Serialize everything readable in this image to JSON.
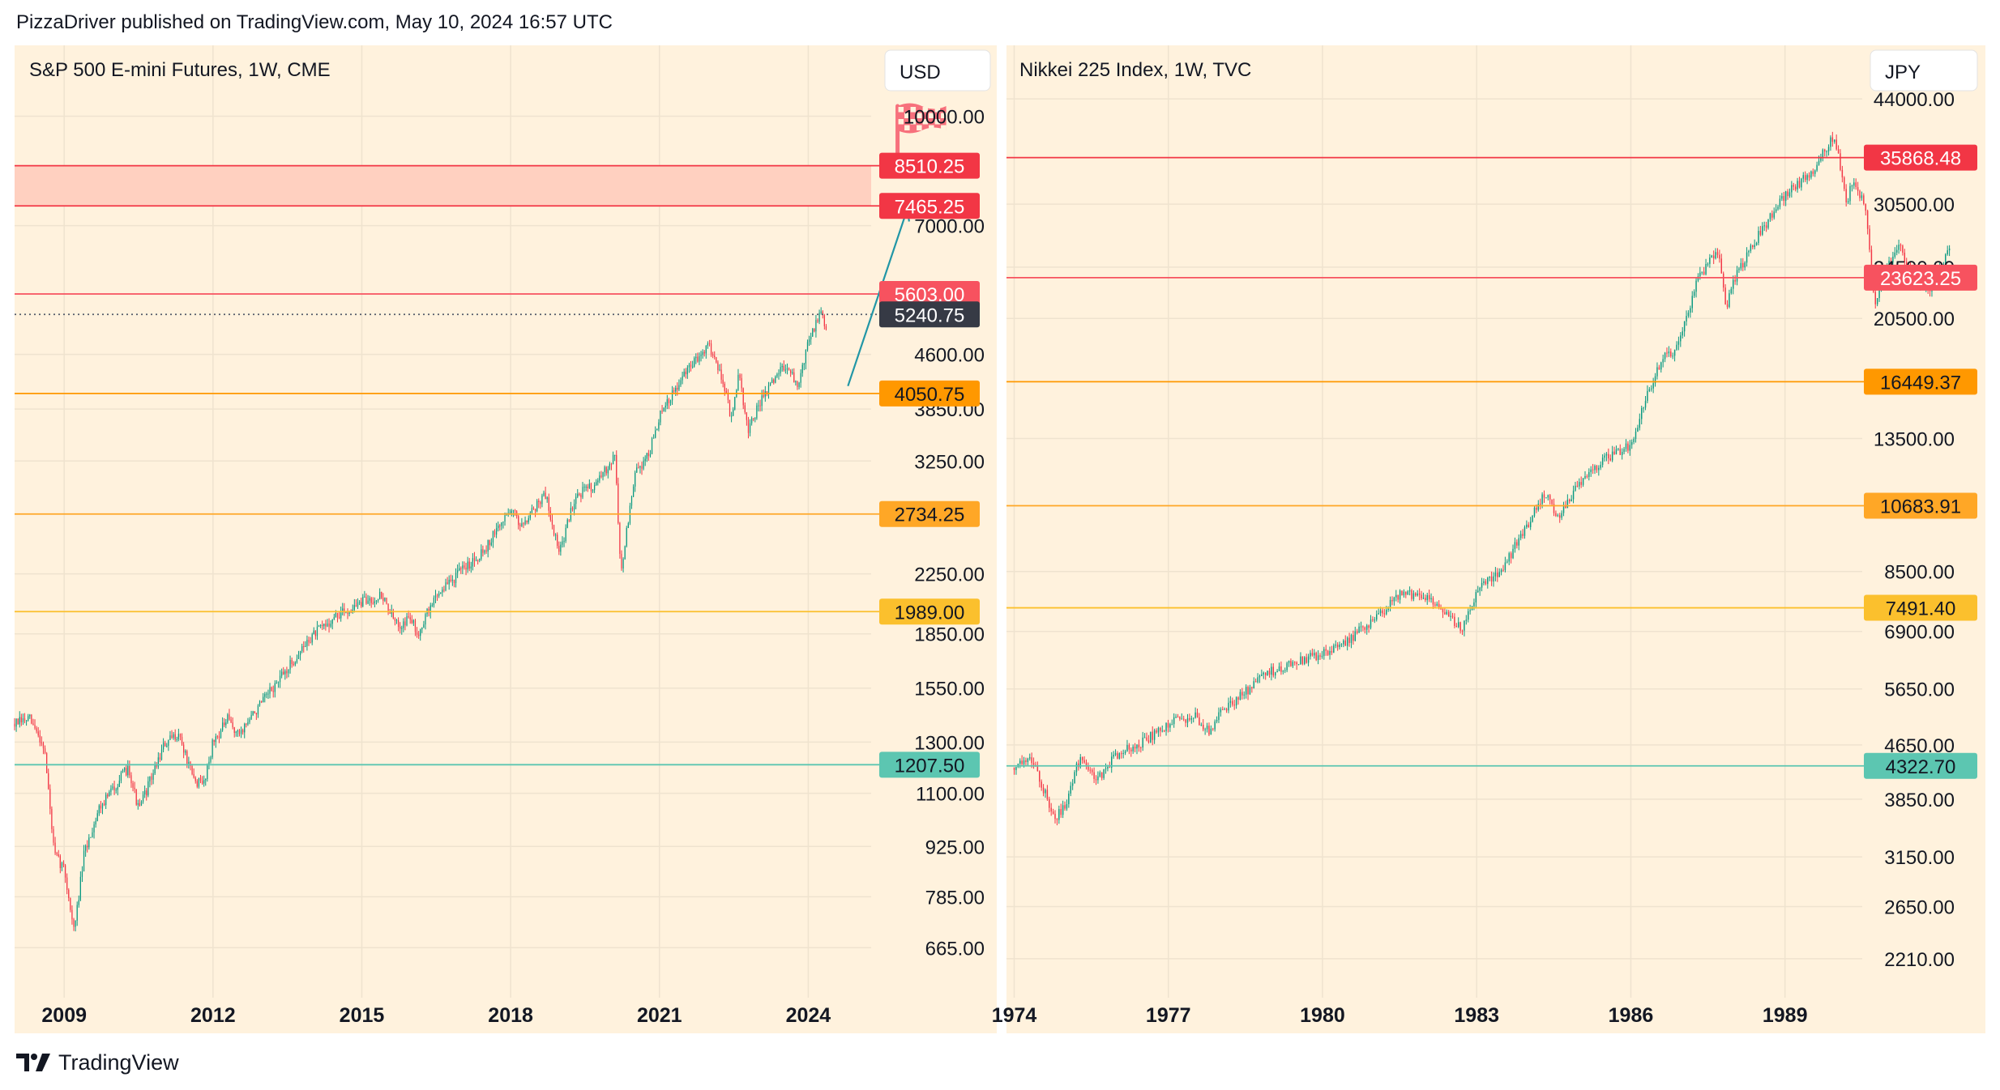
{
  "header": {
    "text": "PizzaDriver published on TradingView.com, May 10, 2024 16:57 UTC"
  },
  "footer": {
    "brand": "TradingView"
  },
  "colors": {
    "panel_bg": "#fff2dd",
    "grid": "#efe3cf",
    "candle_up": "#089981",
    "candle_down": "#f23645",
    "red_line": "#f23645",
    "orange_line": "#ff9800",
    "gold_line": "#f7b500",
    "teal_line": "#5cc6b1",
    "zone_fill": "#ffd0c0",
    "arrow": "#2196a6",
    "flag": "#f7707c"
  },
  "chart_data": [
    {
      "type": "candlestick",
      "title": "S&P 500 E-mini Futures, 1W, CME",
      "currency": "USD",
      "scale": "log",
      "yticks": [
        "10000.00",
        "7000.00",
        "4600.00",
        "3850.00",
        "3250.00",
        "2250.00",
        "1850.00",
        "1550.00",
        "1300.00",
        "1100.00",
        "925.00",
        "785.00",
        "665.00"
      ],
      "xticks": [
        "2009",
        "2012",
        "2015",
        "2018",
        "2021",
        "2024"
      ],
      "xrange": [
        2008.0,
        2027.8
      ],
      "yrange": [
        565,
        12600
      ],
      "price_path": [
        [
          2008.0,
          1380
        ],
        [
          2008.3,
          1400
        ],
        [
          2008.6,
          1280
        ],
        [
          2008.8,
          900
        ],
        [
          2009.0,
          860
        ],
        [
          2009.2,
          700
        ],
        [
          2009.4,
          900
        ],
        [
          2009.7,
          1050
        ],
        [
          2010.0,
          1120
        ],
        [
          2010.3,
          1200
        ],
        [
          2010.5,
          1040
        ],
        [
          2010.8,
          1180
        ],
        [
          2011.0,
          1280
        ],
        [
          2011.3,
          1340
        ],
        [
          2011.6,
          1150
        ],
        [
          2011.8,
          1130
        ],
        [
          2012.0,
          1300
        ],
        [
          2012.3,
          1400
        ],
        [
          2012.5,
          1330
        ],
        [
          2012.8,
          1420
        ],
        [
          2013.0,
          1480
        ],
        [
          2013.5,
          1650
        ],
        [
          2014.0,
          1840
        ],
        [
          2014.5,
          1960
        ],
        [
          2015.0,
          2050
        ],
        [
          2015.4,
          2100
        ],
        [
          2015.7,
          1900
        ],
        [
          2016.0,
          1950
        ],
        [
          2016.1,
          1840
        ],
        [
          2016.5,
          2100
        ],
        [
          2017.0,
          2270
        ],
        [
          2017.5,
          2450
        ],
        [
          2018.0,
          2790
        ],
        [
          2018.2,
          2640
        ],
        [
          2018.7,
          2920
        ],
        [
          2018.98,
          2400
        ],
        [
          2019.3,
          2900
        ],
        [
          2019.8,
          3050
        ],
        [
          2020.1,
          3340
        ],
        [
          2020.22,
          2250
        ],
        [
          2020.5,
          3100
        ],
        [
          2020.8,
          3350
        ],
        [
          2021.0,
          3750
        ],
        [
          2021.5,
          4300
        ],
        [
          2021.99,
          4780
        ],
        [
          2022.3,
          4200
        ],
        [
          2022.45,
          3700
        ],
        [
          2022.6,
          4300
        ],
        [
          2022.79,
          3580
        ],
        [
          2023.0,
          3900
        ],
        [
          2023.5,
          4450
        ],
        [
          2023.8,
          4150
        ],
        [
          2024.0,
          4800
        ],
        [
          2024.25,
          5270
        ],
        [
          2024.36,
          5010
        ],
        [
          2024.36,
          5240.75
        ]
      ],
      "levels": [
        {
          "value": 8510.25,
          "label": "8510.25",
          "color": "#f23645"
        },
        {
          "value": 7465.25,
          "label": "7465.25",
          "color": "#f23645"
        },
        {
          "value": 5603.0,
          "label": "5603.00",
          "color": "#f7525f"
        },
        {
          "value": 5240.75,
          "label": "5240.75",
          "color": "#363a45",
          "dotted": true
        },
        {
          "value": 4050.75,
          "label": "4050.75",
          "color": "#ff9800"
        },
        {
          "value": 2734.25,
          "label": "2734.25",
          "color": "#ffa726"
        },
        {
          "value": 1989.0,
          "label": "1989.00",
          "color": "#fbc02d"
        },
        {
          "value": 1207.5,
          "label": "1207.50",
          "color": "#5cc6b1"
        }
      ],
      "zone": [
        7465.25,
        8510.25
      ],
      "arrow": {
        "from": [
          2024.8,
          4150
        ],
        "to": [
          2026.0,
          7400
        ]
      },
      "flag": {
        "x": 2025.8,
        "y": 9600
      }
    },
    {
      "type": "candlestick",
      "title": "Nikkei 225 Index, 1W, TVC",
      "currency": "JPY",
      "scale": "log",
      "yticks": [
        "44000.00",
        "30500.00",
        "24500.00",
        "20500.00",
        "13500.00",
        "8500.00",
        "6900.00",
        "5650.00",
        "4650.00",
        "3850.00",
        "3150.00",
        "2650.00",
        "2210.00"
      ],
      "xticks": [
        "1974",
        "1977",
        "1980",
        "1983",
        "1986",
        "1989"
      ],
      "xrange": [
        1973.85,
        1992.9
      ],
      "yrange": [
        1930,
        53000
      ],
      "price_path": [
        [
          1974.0,
          4300
        ],
        [
          1974.3,
          4500
        ],
        [
          1974.5,
          4100
        ],
        [
          1974.8,
          3600
        ],
        [
          1975.0,
          3800
        ],
        [
          1975.3,
          4500
        ],
        [
          1975.6,
          4100
        ],
        [
          1975.8,
          4300
        ],
        [
          1976.0,
          4500
        ],
        [
          1976.5,
          4700
        ],
        [
          1977.0,
          5000
        ],
        [
          1977.5,
          5150
        ],
        [
          1977.8,
          4850
        ],
        [
          1978.0,
          5200
        ],
        [
          1978.5,
          5600
        ],
        [
          1979.0,
          6000
        ],
        [
          1979.5,
          6200
        ],
        [
          1980.0,
          6400
        ],
        [
          1980.5,
          6700
        ],
        [
          1981.0,
          7200
        ],
        [
          1981.5,
          7850
        ],
        [
          1982.0,
          7800
        ],
        [
          1982.5,
          7250
        ],
        [
          1982.7,
          6950
        ],
        [
          1983.0,
          7900
        ],
        [
          1983.5,
          8600
        ],
        [
          1984.0,
          10000
        ],
        [
          1984.3,
          11200
        ],
        [
          1984.6,
          10300
        ],
        [
          1985.0,
          11600
        ],
        [
          1985.5,
          12600
        ],
        [
          1986.0,
          13200
        ],
        [
          1986.3,
          15600
        ],
        [
          1986.6,
          17800
        ],
        [
          1986.9,
          18500
        ],
        [
          1987.3,
          23500
        ],
        [
          1987.7,
          26000
        ],
        [
          1987.85,
          21000
        ],
        [
          1988.0,
          23500
        ],
        [
          1988.5,
          27500
        ],
        [
          1989.0,
          31500
        ],
        [
          1989.5,
          34000
        ],
        [
          1989.97,
          38900
        ],
        [
          1990.2,
          30000
        ],
        [
          1990.3,
          33000
        ],
        [
          1990.55,
          30500
        ],
        [
          1990.75,
          21500
        ],
        [
          1990.9,
          24000
        ],
        [
          1991.2,
          26500
        ],
        [
          1991.5,
          23500
        ],
        [
          1991.8,
          22500
        ],
        [
          1992.0,
          24500
        ],
        [
          1992.2,
          26000
        ]
      ],
      "levels": [
        {
          "value": 35868.48,
          "label": "35868.48",
          "color": "#f23645"
        },
        {
          "value": 23623.25,
          "label": "23623.25",
          "color": "#f7525f"
        },
        {
          "value": 16449.37,
          "label": "16449.37",
          "color": "#ff9800"
        },
        {
          "value": 10683.91,
          "label": "10683.91",
          "color": "#ffa726"
        },
        {
          "value": 7491.4,
          "label": "7491.40",
          "color": "#fbc02d"
        },
        {
          "value": 4322.7,
          "label": "4322.70",
          "color": "#5cc6b1"
        }
      ]
    }
  ]
}
